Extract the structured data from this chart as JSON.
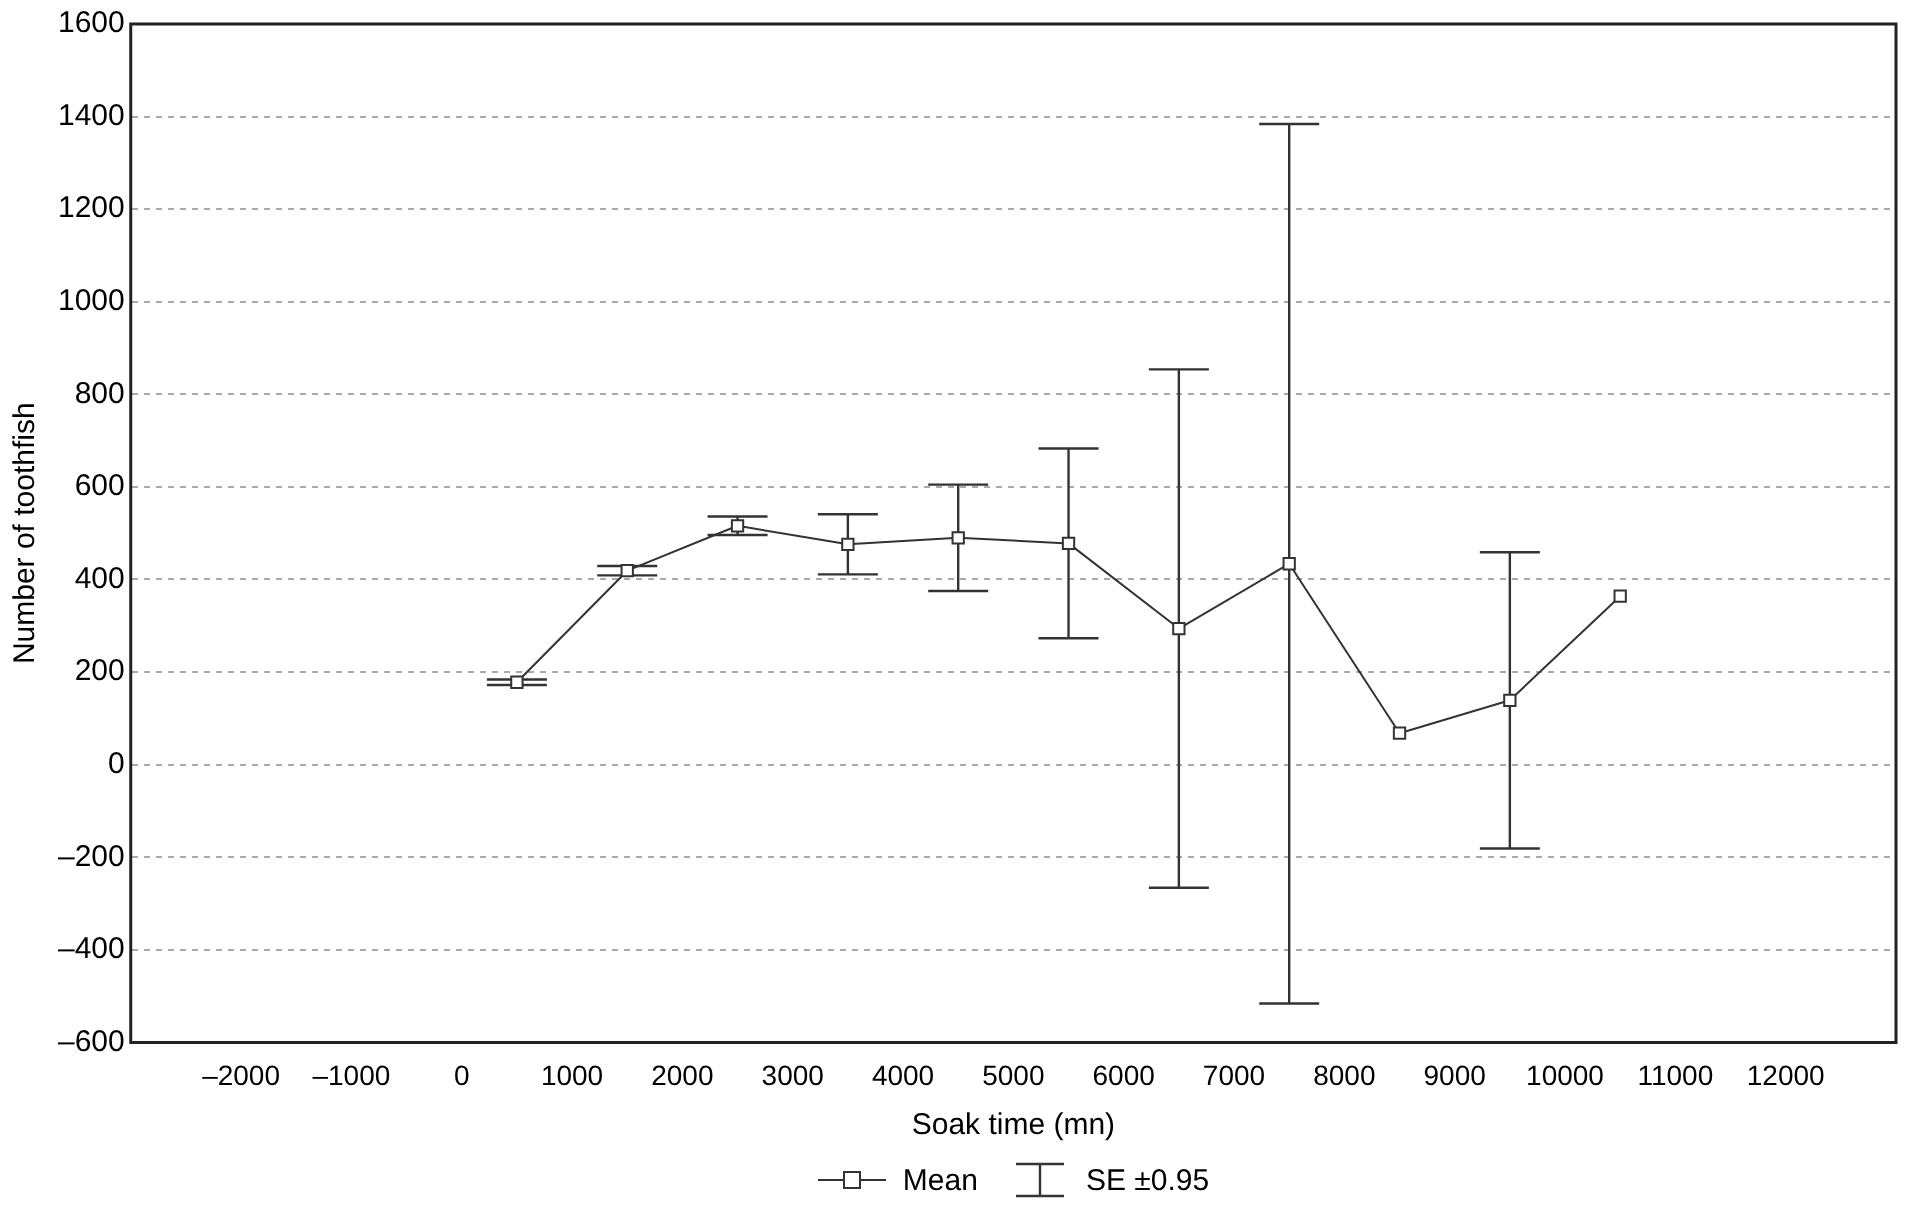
{
  "chart_data": {
    "type": "line",
    "xlabel": "Soak time (mn)",
    "ylabel": "Number of toothfish",
    "x": [
      500,
      1500,
      2500,
      3500,
      4500,
      5500,
      6500,
      7500,
      8500,
      9500,
      10500
    ],
    "series": [
      {
        "name": "Mean",
        "color": "#333333",
        "values": [
          178,
          419,
          516,
          476,
          490,
          478,
          294,
          434,
          68,
          139,
          364
        ],
        "errors": [
          6,
          10,
          20,
          65,
          115,
          205,
          560,
          950,
          null,
          320,
          null
        ]
      }
    ],
    "xlim": [
      -3000,
      13000
    ],
    "xticks": [
      {
        "value": -2000,
        "label": "–2000"
      },
      {
        "value": -1000,
        "label": "–1000"
      },
      0,
      1000,
      2000,
      3000,
      4000,
      5000,
      6000,
      7000,
      8000,
      9000,
      10000,
      11000,
      12000
    ],
    "ylim": [
      -600,
      1600
    ],
    "yticks": [
      {
        "value": -600,
        "label": "–600"
      },
      {
        "value": -400,
        "label": "–400"
      },
      {
        "value": -200,
        "label": "–200"
      },
      0,
      200,
      400,
      600,
      800,
      1000,
      1200,
      1400,
      1600
    ],
    "grid": "y",
    "marker": "square",
    "line_style": "solid",
    "legend": "bottom",
    "annotations": [
      "SE ±0.95"
    ]
  }
}
